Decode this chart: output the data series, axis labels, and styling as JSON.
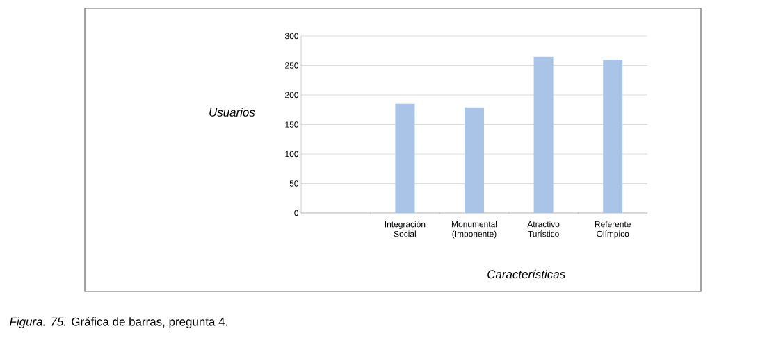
{
  "chart_data": {
    "type": "bar",
    "categories": [
      null,
      "Integración Social",
      "Monumental (Imponente)",
      "Atractivo Turístico",
      "Referente Olímpico"
    ],
    "values": [
      null,
      185,
      179,
      265,
      260
    ],
    "color": "#a9c4e6",
    "xlabel": "Características",
    "ylabel": "Usuarios",
    "ylim": [
      0,
      300
    ],
    "yticks": [
      0,
      50,
      100,
      150,
      200,
      250,
      300
    ],
    "grid": "y",
    "annotations": [
      "*Figura. 75.* Gráfica de barras, pregunta 4."
    ]
  }
}
